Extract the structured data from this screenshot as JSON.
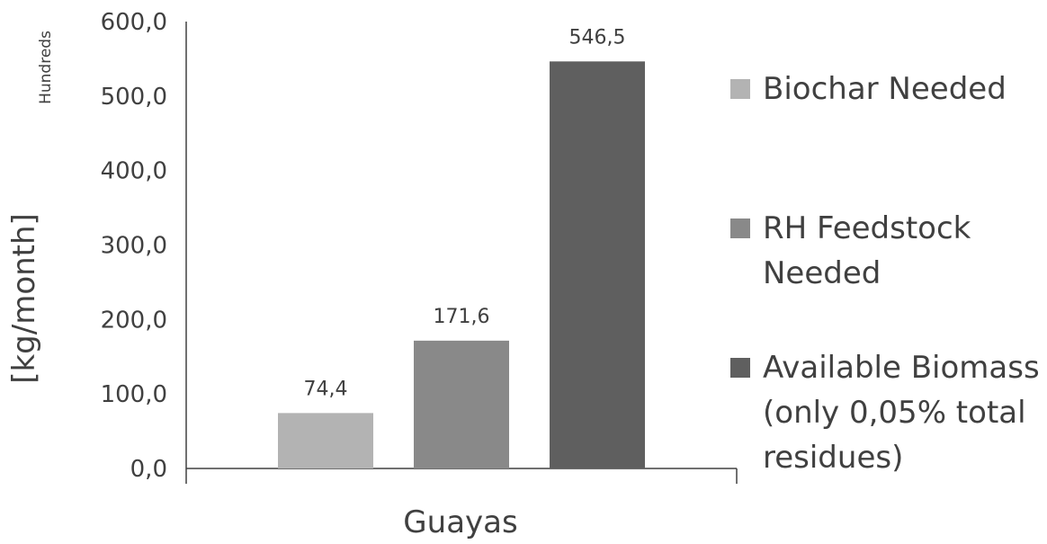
{
  "chart_data": {
    "type": "bar",
    "title": "",
    "units_note": "Hundreds",
    "ylabel": "[kg/month]",
    "xlabel": "",
    "categories": [
      "Guayas"
    ],
    "ylim": [
      0,
      600
    ],
    "yticks": [
      0,
      100,
      200,
      300,
      400,
      500,
      600
    ],
    "ytick_labels": [
      "0,0",
      "100,0",
      "200,0",
      "300,0",
      "400,0",
      "500,0",
      "600,0"
    ],
    "grid": false,
    "legend_position": "right",
    "series": [
      {
        "name": "Biochar Needed",
        "values": [
          74.4
        ],
        "label": "74,4",
        "color": "#b3b3b3"
      },
      {
        "name": "RH Feedstock Needed",
        "values": [
          171.6
        ],
        "label": "171,6",
        "color": "#898989"
      },
      {
        "name": "Available Biomass (only 0,05% total residues)",
        "values": [
          546.5
        ],
        "label": "546,5",
        "color": "#5f5f5f"
      }
    ]
  }
}
